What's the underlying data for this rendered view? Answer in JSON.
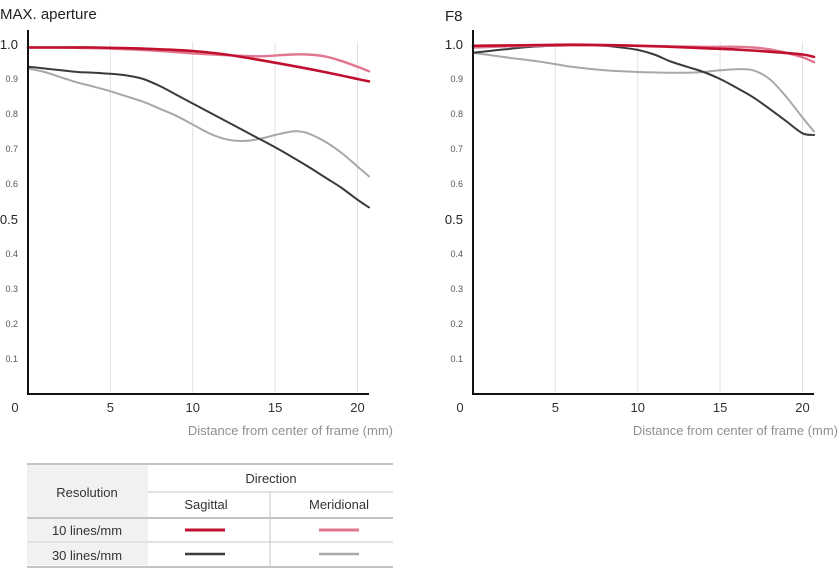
{
  "colors": {
    "sagittal_10": "#c0102e",
    "meridional_10": "#e07690",
    "sagittal_30": "#3a3a3c",
    "meridional_30": "#a8a8ac",
    "grid": "#e2e2e2",
    "axis": "#111111",
    "tick": "#555555",
    "xlabel": "#909090",
    "table_header_bg": "#f1f1f1",
    "table_border": "#9a9a9a"
  },
  "chart_data": [
    {
      "type": "line",
      "title": "MAX. aperture",
      "xlabel": "Distance from center of frame (mm)",
      "ylabel": "",
      "xlim": [
        0,
        20.7
      ],
      "ylim": [
        0,
        1.0
      ],
      "xticks": [
        "0",
        "5",
        "10",
        "15",
        "20"
      ],
      "yticks": [
        "0.1",
        "0.2",
        "0.3",
        "0.4",
        "0.5",
        "0.6",
        "0.7",
        "0.8",
        "0.9",
        "1.0"
      ],
      "grid": true,
      "series": [
        {
          "key": "s10",
          "x": [
            0,
            2,
            4,
            6,
            8,
            10,
            12,
            14,
            16,
            18,
            20,
            20.7
          ],
          "y": [
            0.99,
            0.99,
            0.99,
            0.988,
            0.985,
            0.98,
            0.97,
            0.955,
            0.938,
            0.92,
            0.9,
            0.893
          ]
        },
        {
          "key": "m10",
          "x": [
            0,
            2,
            4,
            6,
            8,
            10,
            12,
            14,
            15,
            16,
            17,
            18,
            19,
            20,
            20.7
          ],
          "y": [
            0.99,
            0.99,
            0.988,
            0.985,
            0.98,
            0.973,
            0.968,
            0.965,
            0.967,
            0.97,
            0.97,
            0.965,
            0.952,
            0.935,
            0.922
          ]
        },
        {
          "key": "s30",
          "x": [
            0,
            1,
            2,
            3,
            4,
            5,
            6,
            7,
            8,
            9,
            10,
            11,
            12,
            13,
            14,
            15,
            16,
            17,
            18,
            19,
            20,
            20.7
          ],
          "y": [
            0.935,
            0.93,
            0.925,
            0.92,
            0.918,
            0.915,
            0.91,
            0.9,
            0.88,
            0.855,
            0.83,
            0.805,
            0.78,
            0.755,
            0.73,
            0.705,
            0.678,
            0.65,
            0.62,
            0.59,
            0.555,
            0.533
          ]
        },
        {
          "key": "m30",
          "x": [
            0,
            1,
            2,
            3,
            4,
            5,
            6,
            7,
            8,
            9,
            10,
            11,
            12,
            13,
            14,
            15,
            16,
            16.5,
            17,
            18,
            19,
            20,
            20.7
          ],
          "y": [
            0.93,
            0.92,
            0.905,
            0.89,
            0.878,
            0.865,
            0.85,
            0.835,
            0.815,
            0.795,
            0.77,
            0.745,
            0.728,
            0.723,
            0.728,
            0.74,
            0.75,
            0.75,
            0.745,
            0.722,
            0.69,
            0.65,
            0.622
          ]
        }
      ]
    },
    {
      "type": "line",
      "title": "F8",
      "xlabel": "Distance from center of frame (mm)",
      "ylabel": "",
      "xlim": [
        0,
        20.7
      ],
      "ylim": [
        0,
        1.0
      ],
      "xticks": [
        "0",
        "5",
        "10",
        "15",
        "20"
      ],
      "yticks": [
        "0.1",
        "0.2",
        "0.3",
        "0.4",
        "0.5",
        "0.6",
        "0.7",
        "0.8",
        "0.9",
        "1.0"
      ],
      "grid": true,
      "series": [
        {
          "key": "s10",
          "x": [
            0,
            2,
            4,
            6,
            8,
            10,
            12,
            14,
            16,
            18,
            20,
            20.7
          ],
          "y": [
            0.995,
            0.996,
            0.997,
            0.998,
            0.997,
            0.995,
            0.992,
            0.988,
            0.984,
            0.978,
            0.97,
            0.963
          ]
        },
        {
          "key": "m10",
          "x": [
            0,
            2,
            4,
            6,
            8,
            10,
            12,
            14,
            15,
            16,
            17,
            18,
            19,
            20,
            20.7
          ],
          "y": [
            0.99,
            0.993,
            0.995,
            0.996,
            0.996,
            0.995,
            0.993,
            0.992,
            0.992,
            0.992,
            0.99,
            0.985,
            0.975,
            0.962,
            0.948
          ]
        },
        {
          "key": "s30",
          "x": [
            0,
            1,
            2,
            3,
            4,
            5,
            6,
            7,
            8,
            9,
            10,
            11,
            12,
            13,
            14,
            15,
            16,
            17,
            18,
            19,
            20,
            20.7
          ],
          "y": [
            0.975,
            0.98,
            0.985,
            0.99,
            0.993,
            0.995,
            0.996,
            0.996,
            0.995,
            0.99,
            0.983,
            0.97,
            0.95,
            0.935,
            0.92,
            0.9,
            0.875,
            0.848,
            0.815,
            0.78,
            0.745,
            0.74
          ]
        },
        {
          "key": "m30",
          "x": [
            0,
            2,
            4,
            6,
            8,
            10,
            12,
            13,
            14,
            15,
            16,
            17,
            18,
            19,
            20,
            20.7
          ],
          "y": [
            0.975,
            0.962,
            0.95,
            0.935,
            0.925,
            0.92,
            0.918,
            0.918,
            0.92,
            0.925,
            0.928,
            0.925,
            0.9,
            0.85,
            0.79,
            0.75
          ]
        }
      ]
    }
  ],
  "legend": {
    "resolution_header": "Resolution",
    "direction_header": "Direction",
    "sagittal_label": "Sagittal",
    "meridional_label": "Meridional",
    "row_10": "10 lines/mm",
    "row_30": "30 lines/mm"
  }
}
